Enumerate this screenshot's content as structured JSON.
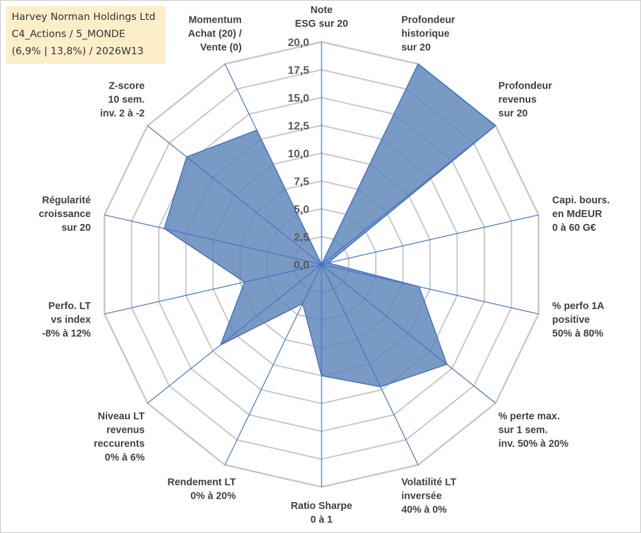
{
  "info": {
    "line1": "Harvey Norman Holdings Ltd",
    "line2": "C4_Actions / 5_MONDE",
    "line3": "(6,9% | 13,8%) / 2026W13"
  },
  "colors": {
    "fill": "#5b84b8",
    "stroke": "#4472c4",
    "grid": "#c8c8c8",
    "axis": "#4472c4"
  },
  "chart_data": {
    "type": "radar",
    "title": "",
    "rmax": 20,
    "ticks": [
      "0,0",
      "2,5",
      "5,0",
      "7,5",
      "10,0",
      "12,5",
      "15,0",
      "17,5",
      "20,0"
    ],
    "axes": [
      {
        "label": [
          "Note",
          "ESG sur 20"
        ]
      },
      {
        "label": [
          "Profondeur",
          "historique",
          "sur 20"
        ]
      },
      {
        "label": [
          "Profondeur",
          "revenus",
          "sur 20"
        ]
      },
      {
        "label": [
          "Capi. bours.",
          "en MdEUR",
          "0 à 60 G€"
        ]
      },
      {
        "label": [
          "% perfo 1A",
          "positive",
          "50% à 80%"
        ]
      },
      {
        "label": [
          "% perte max.",
          "sur 1 sem.",
          "inv. 50% à 20%"
        ]
      },
      {
        "label": [
          "Volatilité LT",
          "inversée",
          "40% à 0%"
        ]
      },
      {
        "label": [
          "Ratio Sharpe",
          "0 à 1"
        ]
      },
      {
        "label": [
          "Rendement LT",
          "0% à 20%"
        ]
      },
      {
        "label": [
          "Niveau LT",
          "revenus",
          "reccurents",
          "0% à 6%"
        ]
      },
      {
        "label": [
          "Perfo. LT",
          "vs index",
          "-8% à 12%"
        ]
      },
      {
        "label": [
          "Régularité",
          "croissance",
          "sur 20"
        ]
      },
      {
        "label": [
          "Z-score",
          "10 sem.",
          "inv. 2 à -2"
        ]
      },
      {
        "label": [
          "Momentum",
          "Achat (20) /",
          "Vente (0)"
        ]
      }
    ],
    "series": [
      {
        "name": "Harvey Norman Holdings Ltd",
        "values": [
          0,
          20,
          20,
          0.6,
          9,
          14.4,
          12.2,
          10,
          3.9,
          11.6,
          7.1,
          14.5,
          15.5,
          13.4
        ]
      }
    ]
  }
}
